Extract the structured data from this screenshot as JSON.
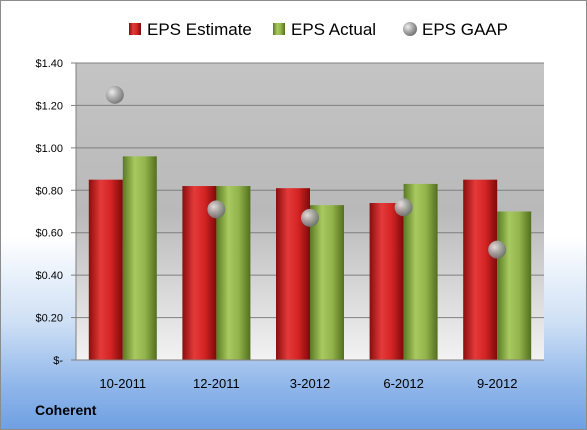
{
  "company": "Coherent",
  "chart_data": {
    "type": "bar",
    "categories": [
      "10-2011",
      "12-2011",
      "3-2012",
      "6-2012",
      "9-2012"
    ],
    "series": [
      {
        "name": "EPS Estimate",
        "kind": "bar",
        "color": "#cc1f1f",
        "values": [
          0.85,
          0.82,
          0.81,
          0.74,
          0.85
        ]
      },
      {
        "name": "EPS Actual",
        "kind": "bar",
        "color": "#8fb04a",
        "values": [
          0.96,
          0.82,
          0.73,
          0.83,
          0.7
        ]
      },
      {
        "name": "EPS GAAP",
        "kind": "scatter",
        "color": "#a6a6a6",
        "values": [
          1.25,
          0.71,
          0.67,
          0.72,
          0.52
        ]
      }
    ],
    "ylim": [
      0,
      1.4
    ],
    "yticks": [
      0,
      0.2,
      0.4,
      0.6,
      0.8,
      1.0,
      1.2,
      1.4
    ],
    "ytick_labels": [
      "$-",
      "$0.20",
      "$0.40",
      "$0.60",
      "$0.80",
      "$1.00",
      "$1.20",
      "$1.40"
    ],
    "grid": true,
    "legend_position": "top"
  }
}
